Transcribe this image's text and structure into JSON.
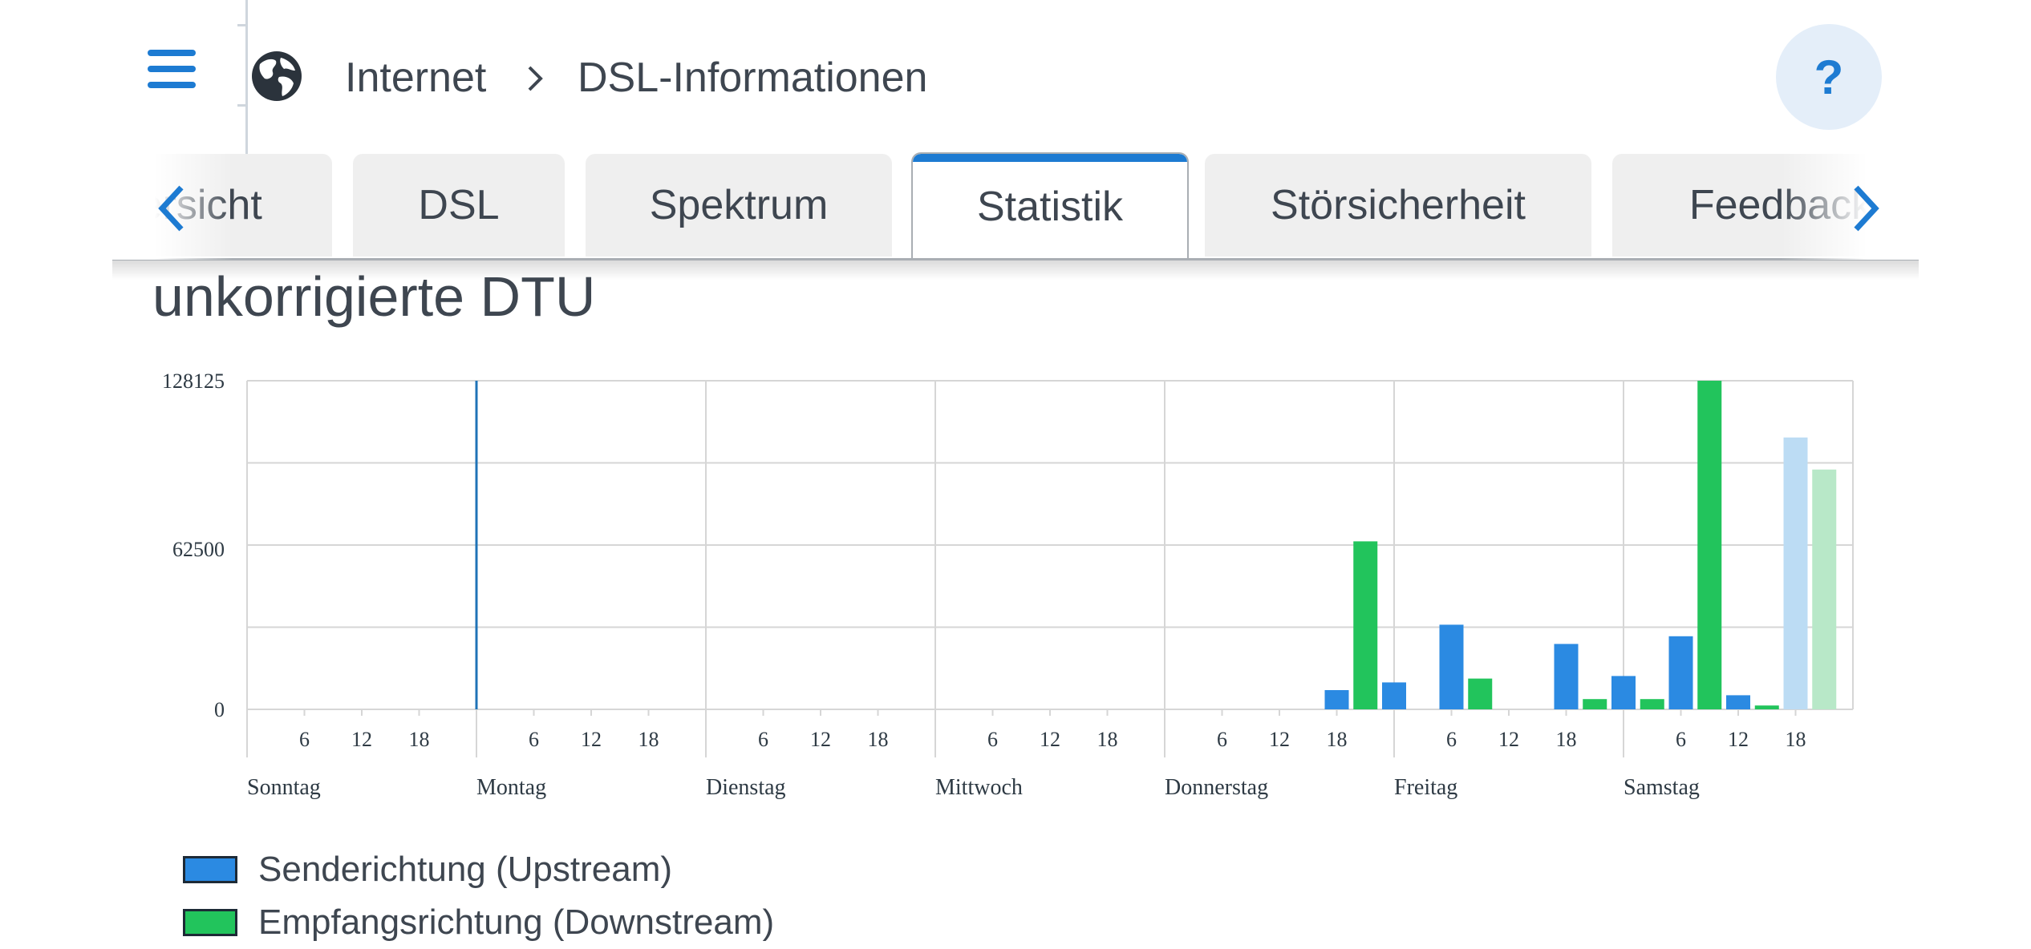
{
  "header": {
    "breadcrumb_root": "Internet",
    "breadcrumb_separator": "›",
    "breadcrumb_current": "DSL-Informationen",
    "help_label": "?"
  },
  "tabs": [
    {
      "label": "Übersicht",
      "visible_text": "Übersicht"
    },
    {
      "label": "DSL"
    },
    {
      "label": "Spektrum"
    },
    {
      "label": "Statistik",
      "active": true
    },
    {
      "label": "Störsicherheit"
    },
    {
      "label": "Feedback"
    }
  ],
  "page": {
    "section_title": "unkorrigierte DTU"
  },
  "colors": {
    "accent": "#1d7bd2",
    "upstream": "#2b8ae2",
    "downstream": "#22c45c",
    "upstream_light": "#bcdcf4",
    "downstream_light": "#b8e8c8"
  },
  "chart_data": {
    "type": "bar",
    "title": "unkorrigierte DTU",
    "y_ticks": [
      "128125",
      "62500",
      "0"
    ],
    "ylim": [
      0,
      128125
    ],
    "days": [
      "Sonntag",
      "Montag",
      "Dienstag",
      "Mittwoch",
      "Donnerstag",
      "Freitag",
      "Samstag"
    ],
    "hour_ticks": [
      "6",
      "12",
      "18"
    ],
    "grid": true,
    "series": [
      {
        "name": "Senderichtung (Upstream)",
        "color": "#2b8ae2",
        "points": [
          {
            "day": 4,
            "hour": 18,
            "value": 7500
          },
          {
            "day": 5,
            "hour": 0,
            "value": 10500
          },
          {
            "day": 5,
            "hour": 6,
            "value": 33000
          },
          {
            "day": 5,
            "hour": 18,
            "value": 25500
          },
          {
            "day": 6,
            "hour": 0,
            "value": 13000
          },
          {
            "day": 6,
            "hour": 6,
            "value": 28500
          },
          {
            "day": 6,
            "hour": 12,
            "value": 5500
          },
          {
            "day": 6,
            "hour": 18,
            "value": 106000,
            "faded": true
          }
        ]
      },
      {
        "name": "Empfangsrichtung (Downstream)",
        "color": "#22c45c",
        "points": [
          {
            "day": 4,
            "hour": 21,
            "value": 65500
          },
          {
            "day": 5,
            "hour": 9,
            "value": 12000
          },
          {
            "day": 5,
            "hour": 21,
            "value": 4000
          },
          {
            "day": 6,
            "hour": 3,
            "value": 4000
          },
          {
            "day": 6,
            "hour": 9,
            "value": 128125
          },
          {
            "day": 6,
            "hour": 15,
            "value": 1500
          },
          {
            "day": 6,
            "hour": 21,
            "value": 93500,
            "faded": true
          }
        ]
      }
    ],
    "marker_line": {
      "day": 1,
      "hour": 0
    }
  },
  "legend": [
    {
      "label": "Senderichtung (Upstream)",
      "color": "#2b8ae2"
    },
    {
      "label": "Empfangsrichtung (Downstream)",
      "color": "#22c45c"
    }
  ]
}
